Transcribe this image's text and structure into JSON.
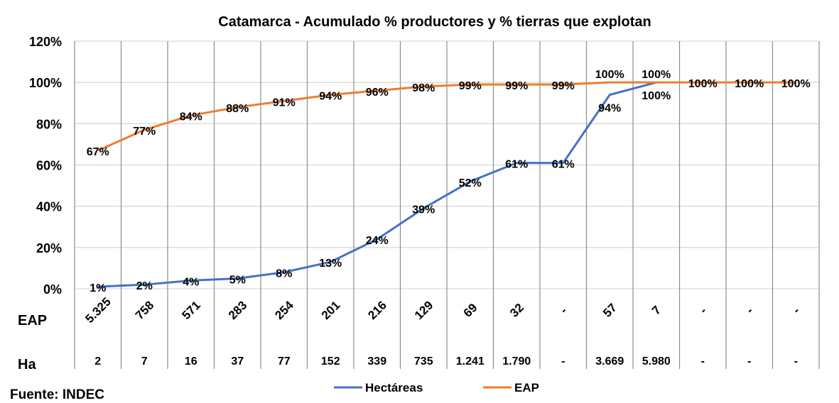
{
  "chart_data": {
    "type": "line",
    "title": "Catamarca - Acumulado % productores y % tierras que explotan",
    "ylim": [
      0,
      120
    ],
    "y_ticks": [
      "0%",
      "20%",
      "40%",
      "60%",
      "80%",
      "100%",
      "120%"
    ],
    "y_tick_values": [
      0,
      20,
      40,
      60,
      80,
      100,
      120
    ],
    "grid": true,
    "table_rows": [
      {
        "label": "EAP",
        "values": [
          "5.325",
          "758",
          "571",
          "283",
          "254",
          "201",
          "216",
          "129",
          "69",
          "32",
          "-",
          "57",
          "7",
          "-",
          "-",
          "-"
        ]
      },
      {
        "label": "Ha",
        "values": [
          "2",
          "7",
          "16",
          "37",
          "77",
          "152",
          "339",
          "735",
          "1.241",
          "1.790",
          "-",
          "3.669",
          "5.980",
          "-",
          "-",
          "-"
        ]
      }
    ],
    "series": [
      {
        "name": "Hectáreas",
        "color": "#4472C4",
        "values": [
          1,
          2,
          4,
          5,
          8,
          13,
          24,
          39,
          52,
          61,
          61,
          94,
          100,
          null,
          null,
          null
        ]
      },
      {
        "name": "EAP",
        "color": "#ED7D31",
        "values": [
          67,
          77,
          84,
          88,
          91,
          94,
          96,
          98,
          99,
          99,
          99,
          100,
          100,
          100,
          100,
          100
        ]
      }
    ],
    "legend_position": "bottom"
  },
  "source": "Fuente: INDEC"
}
